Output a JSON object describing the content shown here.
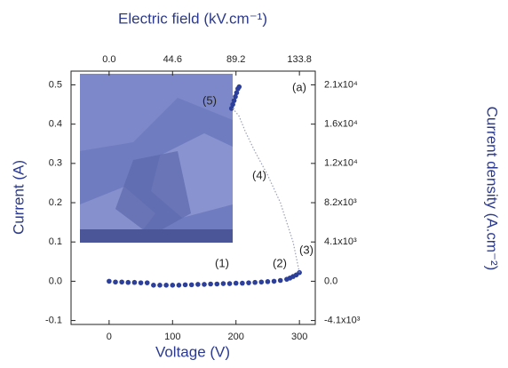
{
  "chart_data": {
    "type": "scatter",
    "xlabel": "Voltage (V)",
    "ylabel": "Current (A)",
    "x2label": "Electric field (kV.cm⁻¹)",
    "y2label": "Current density (A.cm⁻²)",
    "xlim": [
      -60,
      325
    ],
    "xticks": [
      0,
      100,
      200,
      300
    ],
    "ylim": [
      -0.11,
      0.535
    ],
    "yticks": [
      {
        "value": -0.1,
        "label": "-0.1"
      },
      {
        "value": 0,
        "label": "0.0"
      },
      0.1,
      0.2,
      0.3,
      0.4,
      0.5
    ],
    "x2lim": [
      -26.76,
      144.95
    ],
    "x2ticks": [
      {
        "value": 0,
        "label": "0.0"
      },
      44.6,
      89.2,
      133.8
    ],
    "y2lim": [
      -4510,
      21935
    ],
    "y2ticks": [
      {
        "value": -4100,
        "label": "-4.1x10³"
      },
      {
        "value": 0,
        "label": "0.0"
      },
      {
        "value": 4100,
        "label": "4.1x10³"
      },
      {
        "value": 8200,
        "label": "8.2x10³"
      },
      {
        "value": 12300,
        "label": "1.2x10⁴"
      },
      {
        "value": 16400,
        "label": "1.6x10⁴"
      },
      {
        "value": 20500,
        "label": "2.1x10⁴"
      }
    ],
    "annotations": [
      "(1)",
      "(2)",
      "(3)",
      "(4)",
      "(5)",
      "(a)"
    ],
    "series": [
      {
        "style": "markers",
        "color": "#2c3f9a",
        "x": [
          0,
          10,
          20,
          30,
          40,
          50,
          60,
          70,
          80,
          90,
          100,
          110,
          120,
          130,
          140,
          150,
          160,
          170,
          180,
          190,
          200,
          210,
          220,
          230,
          240,
          250,
          260,
          270,
          280,
          285,
          290,
          295,
          300,
          193,
          195,
          197,
          199,
          201,
          203,
          205
        ],
        "values": [
          0,
          -0.002,
          -0.002,
          -0.003,
          -0.003,
          -0.004,
          -0.004,
          -0.01,
          -0.01,
          -0.01,
          -0.01,
          -0.01,
          -0.009,
          -0.009,
          -0.008,
          -0.008,
          -0.007,
          -0.007,
          -0.006,
          -0.006,
          -0.005,
          -0.005,
          -0.004,
          -0.003,
          -0.002,
          -0.001,
          0,
          0.002,
          0.005,
          0.008,
          0.012,
          0.016,
          0.022,
          0.44,
          0.45,
          0.46,
          0.47,
          0.48,
          0.49,
          0.495
        ]
      },
      {
        "style": "dotted",
        "color": "#9aa0b8",
        "x": [
          300,
          290,
          270,
          250,
          230,
          215,
          205,
          195
        ],
        "values": [
          0.022,
          0.1,
          0.2,
          0.27,
          0.33,
          0.38,
          0.42,
          0.44
        ]
      }
    ]
  }
}
